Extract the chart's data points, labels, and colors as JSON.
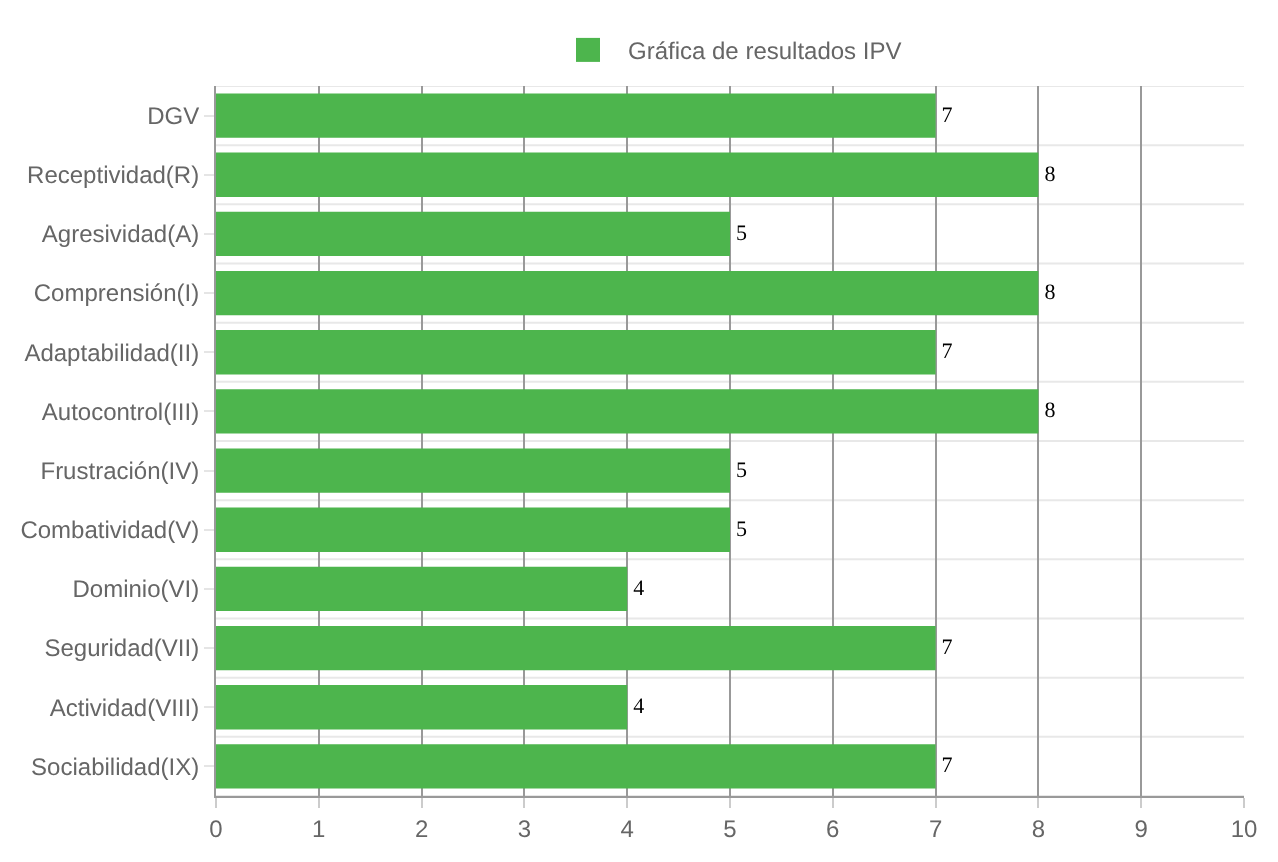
{
  "chart_data": {
    "type": "bar",
    "orientation": "horizontal",
    "categories": [
      "DGV",
      "Receptividad(R)",
      "Agresividad(A)",
      "Comprensión(I)",
      "Adaptabilidad(II)",
      "Autocontrol(III)",
      "Frustración(IV)",
      "Combatividad(V)",
      "Dominio(VI)",
      "Seguridad(VII)",
      "Actividad(VIII)",
      "Sociabilidad(IX)"
    ],
    "series": [
      {
        "name": "Gráfica de resultados IPV",
        "color": "#4db54d",
        "values": [
          7,
          8,
          5,
          8,
          7,
          8,
          5,
          5,
          4,
          7,
          4,
          7
        ]
      }
    ],
    "xlim": [
      0,
      10
    ],
    "xticks": [
      0,
      1,
      2,
      3,
      4,
      5,
      6,
      7,
      8,
      9,
      10
    ],
    "grid": true,
    "legend": "top",
    "data_labels": true
  }
}
